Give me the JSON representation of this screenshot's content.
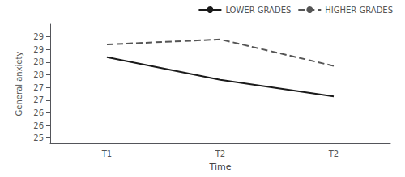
{
  "chart_data": {
    "type": "line",
    "categories": [
      "T1",
      "T2",
      "T2"
    ],
    "xlabel": "Time",
    "ylabel": "General anxiety",
    "series": [
      {
        "name": "LOWER GRADES",
        "color": "#1a1a1a",
        "line_style": "solid",
        "values": [
          28.2,
          27.3,
          26.65
        ]
      },
      {
        "name": "HIGHER GRADES",
        "color": "#555555",
        "line_style": "dashed",
        "values": [
          28.7,
          28.9,
          27.85
        ]
      }
    ],
    "ylim": [
      24.8,
      29.5
    ],
    "yticks": [
      25,
      {
        "value": 25.5,
        "label": "26"
      },
      26,
      {
        "value": 26.5,
        "label": "27"
      },
      27,
      {
        "value": 27.5,
        "label": "28"
      },
      28,
      {
        "value": 28.5,
        "label": "29"
      },
      29
    ],
    "grid": false,
    "legend": "upper right"
  }
}
